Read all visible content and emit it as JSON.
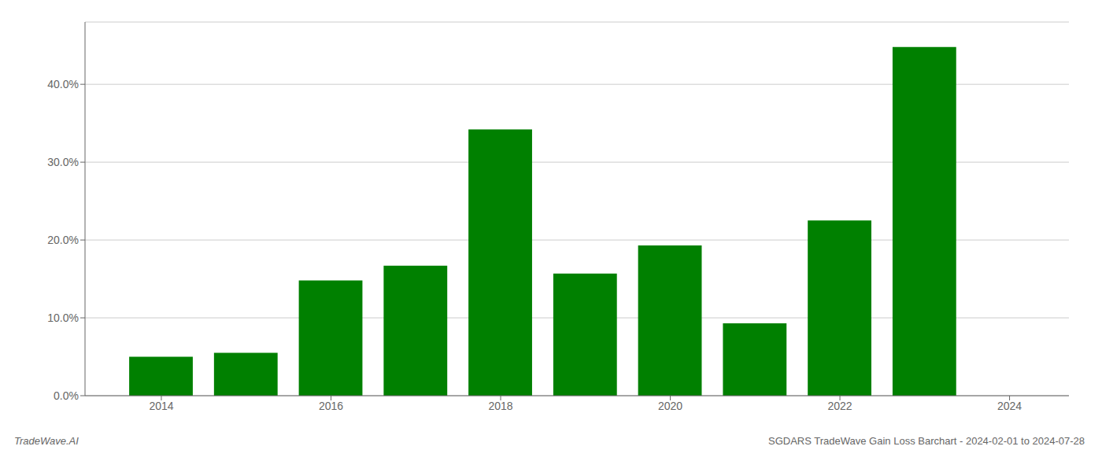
{
  "chart_data": {
    "type": "bar",
    "x": [
      2014,
      2015,
      2016,
      2017,
      2018,
      2019,
      2020,
      2021,
      2022,
      2023
    ],
    "values": [
      0.05,
      0.055,
      0.148,
      0.167,
      0.342,
      0.157,
      0.193,
      0.093,
      0.225,
      0.448
    ],
    "color": "#008000",
    "xlim": [
      2013.1,
      2024.7
    ],
    "xticks": [
      2014,
      2016,
      2018,
      2020,
      2022,
      2024
    ],
    "ylim": [
      0,
      0.48
    ],
    "yticks": [
      {
        "value": 0.0,
        "label": "0.0%"
      },
      {
        "value": 0.1,
        "label": "10.0%"
      },
      {
        "value": 0.2,
        "label": "20.0%"
      },
      {
        "value": 0.3,
        "label": "30.0%"
      },
      {
        "value": 0.4,
        "label": "40.0%"
      }
    ],
    "grid": true,
    "annotations": [
      {
        "text": "TradeWave.AI"
      },
      {
        "text": "SGDARS TradeWave Gain Loss Barchart - 2024-02-01 to 2024-07-28"
      }
    ]
  }
}
